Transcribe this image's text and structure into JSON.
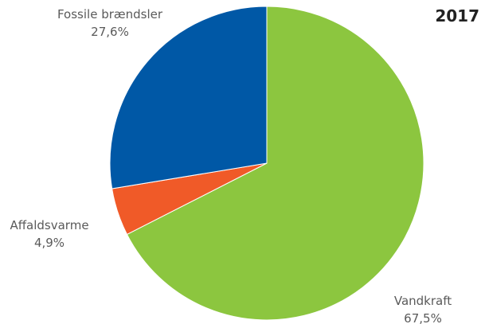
{
  "chart_data": {
    "type": "pie",
    "title": "2017",
    "start": "12 o'clock",
    "direction": "clockwise",
    "slices": [
      {
        "name": "Vandkraft",
        "value": 67.5,
        "value_label": "67,5%",
        "color": "#8cc63f"
      },
      {
        "name": "Affaldsvarme",
        "value": 4.9,
        "value_label": "4,9%",
        "color": "#f05a28"
      },
      {
        "name": "Fossile brændsler",
        "value": 27.6,
        "value_label": "27,6%",
        "color": "#0058a6"
      }
    ]
  }
}
